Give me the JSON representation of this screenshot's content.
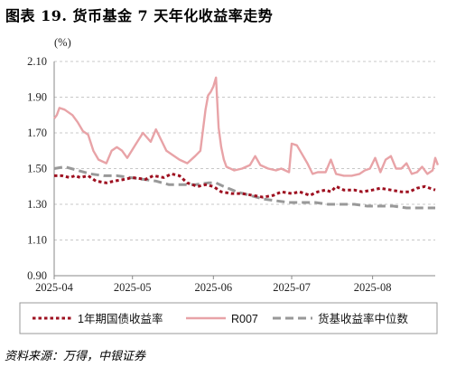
{
  "title": "图表 19. 货币基金 7 天年化收益率走势",
  "source": "资料来源：万得，中银证券",
  "chart_data": {
    "type": "line",
    "unit_label": "(%)",
    "ylim": [
      0.9,
      2.1
    ],
    "yticks": [
      "2.10",
      "1.90",
      "1.70",
      "1.50",
      "1.30",
      "1.10",
      "0.90"
    ],
    "xlim": [
      "2025-04-01",
      "2025-08-25"
    ],
    "xticks": [
      {
        "date": "2025-04-01",
        "label": "2025-04"
      },
      {
        "date": "2025-05-01",
        "label": "2025-05"
      },
      {
        "date": "2025-06-01",
        "label": "2025-06"
      },
      {
        "date": "2025-07-01",
        "label": "2025-07"
      },
      {
        "date": "2025-08-01",
        "label": "2025-08"
      }
    ],
    "grid": "horizontal dashed",
    "legend_position": "bottom",
    "series": [
      {
        "name": "1年期国债收益率",
        "color": "#9e1020",
        "style": "dotted-thick",
        "points": [
          [
            "2025-04-01",
            1.46
          ],
          [
            "2025-04-04",
            1.46
          ],
          [
            "2025-04-07",
            1.45
          ],
          [
            "2025-04-09",
            1.46
          ],
          [
            "2025-04-11",
            1.45
          ],
          [
            "2025-04-14",
            1.46
          ],
          [
            "2025-04-17",
            1.43
          ],
          [
            "2025-04-21",
            1.42
          ],
          [
            "2025-04-24",
            1.43
          ],
          [
            "2025-04-28",
            1.44
          ],
          [
            "2025-05-01",
            1.45
          ],
          [
            "2025-05-06",
            1.44
          ],
          [
            "2025-05-09",
            1.46
          ],
          [
            "2025-05-13",
            1.45
          ],
          [
            "2025-05-16",
            1.47
          ],
          [
            "2025-05-19",
            1.46
          ],
          [
            "2025-05-22",
            1.42
          ],
          [
            "2025-05-26",
            1.4
          ],
          [
            "2025-05-29",
            1.41
          ],
          [
            "2025-06-01",
            1.4
          ],
          [
            "2025-06-04",
            1.37
          ],
          [
            "2025-06-08",
            1.36
          ],
          [
            "2025-06-12",
            1.36
          ],
          [
            "2025-06-16",
            1.35
          ],
          [
            "2025-06-20",
            1.34
          ],
          [
            "2025-06-24",
            1.35
          ],
          [
            "2025-06-27",
            1.37
          ],
          [
            "2025-07-01",
            1.36
          ],
          [
            "2025-07-04",
            1.37
          ],
          [
            "2025-07-08",
            1.35
          ],
          [
            "2025-07-11",
            1.37
          ],
          [
            "2025-07-14",
            1.38
          ],
          [
            "2025-07-16",
            1.37
          ],
          [
            "2025-07-18",
            1.4
          ],
          [
            "2025-07-21",
            1.38
          ],
          [
            "2025-07-25",
            1.38
          ],
          [
            "2025-07-28",
            1.37
          ],
          [
            "2025-08-01",
            1.38
          ],
          [
            "2025-08-04",
            1.39
          ],
          [
            "2025-08-08",
            1.38
          ],
          [
            "2025-08-12",
            1.37
          ],
          [
            "2025-08-15",
            1.37
          ],
          [
            "2025-08-18",
            1.39
          ],
          [
            "2025-08-21",
            1.4
          ],
          [
            "2025-08-25",
            1.38
          ]
        ]
      },
      {
        "name": "R007",
        "color": "#e8a3a7",
        "style": "solid",
        "points": [
          [
            "2025-04-01",
            1.78
          ],
          [
            "2025-04-02",
            1.8
          ],
          [
            "2025-04-03",
            1.84
          ],
          [
            "2025-04-05",
            1.83
          ],
          [
            "2025-04-08",
            1.8
          ],
          [
            "2025-04-10",
            1.76
          ],
          [
            "2025-04-12",
            1.71
          ],
          [
            "2025-04-14",
            1.69
          ],
          [
            "2025-04-16",
            1.6
          ],
          [
            "2025-04-18",
            1.55
          ],
          [
            "2025-04-21",
            1.53
          ],
          [
            "2025-04-23",
            1.6
          ],
          [
            "2025-04-25",
            1.62
          ],
          [
            "2025-04-27",
            1.6
          ],
          [
            "2025-04-29",
            1.56
          ],
          [
            "2025-05-02",
            1.63
          ],
          [
            "2025-05-05",
            1.7
          ],
          [
            "2025-05-08",
            1.65
          ],
          [
            "2025-05-10",
            1.72
          ],
          [
            "2025-05-12",
            1.66
          ],
          [
            "2025-05-14",
            1.6
          ],
          [
            "2025-05-16",
            1.58
          ],
          [
            "2025-05-19",
            1.55
          ],
          [
            "2025-05-22",
            1.53
          ],
          [
            "2025-05-25",
            1.57
          ],
          [
            "2025-05-27",
            1.6
          ],
          [
            "2025-05-29",
            1.83
          ],
          [
            "2025-05-30",
            1.91
          ],
          [
            "2025-05-31",
            1.93
          ],
          [
            "2025-06-01",
            1.96
          ],
          [
            "2025-06-02",
            2.01
          ],
          [
            "2025-06-03",
            1.73
          ],
          [
            "2025-06-04",
            1.62
          ],
          [
            "2025-06-05",
            1.55
          ],
          [
            "2025-06-06",
            1.51
          ],
          [
            "2025-06-09",
            1.49
          ],
          [
            "2025-06-12",
            1.5
          ],
          [
            "2025-06-15",
            1.52
          ],
          [
            "2025-06-17",
            1.57
          ],
          [
            "2025-06-19",
            1.52
          ],
          [
            "2025-06-22",
            1.5
          ],
          [
            "2025-06-25",
            1.49
          ],
          [
            "2025-06-27",
            1.5
          ],
          [
            "2025-06-30",
            1.48
          ],
          [
            "2025-07-01",
            1.64
          ],
          [
            "2025-07-03",
            1.63
          ],
          [
            "2025-07-05",
            1.58
          ],
          [
            "2025-07-07",
            1.53
          ],
          [
            "2025-07-09",
            1.47
          ],
          [
            "2025-07-11",
            1.48
          ],
          [
            "2025-07-14",
            1.48
          ],
          [
            "2025-07-16",
            1.55
          ],
          [
            "2025-07-18",
            1.47
          ],
          [
            "2025-07-21",
            1.46
          ],
          [
            "2025-07-24",
            1.46
          ],
          [
            "2025-07-27",
            1.47
          ],
          [
            "2025-07-29",
            1.49
          ],
          [
            "2025-07-31",
            1.5
          ],
          [
            "2025-08-02",
            1.56
          ],
          [
            "2025-08-04",
            1.48
          ],
          [
            "2025-08-06",
            1.55
          ],
          [
            "2025-08-08",
            1.57
          ],
          [
            "2025-08-10",
            1.5
          ],
          [
            "2025-08-12",
            1.5
          ],
          [
            "2025-08-14",
            1.53
          ],
          [
            "2025-08-16",
            1.47
          ],
          [
            "2025-08-18",
            1.48
          ],
          [
            "2025-08-20",
            1.51
          ],
          [
            "2025-08-22",
            1.47
          ],
          [
            "2025-08-24",
            1.49
          ],
          [
            "2025-08-25",
            1.56
          ],
          [
            "2025-08-26",
            1.52
          ]
        ]
      },
      {
        "name": "货基收益率中位数",
        "color": "#999999",
        "style": "dashed",
        "points": [
          [
            "2025-04-01",
            1.5
          ],
          [
            "2025-04-05",
            1.51
          ],
          [
            "2025-04-10",
            1.49
          ],
          [
            "2025-04-15",
            1.47
          ],
          [
            "2025-04-20",
            1.46
          ],
          [
            "2025-04-25",
            1.46
          ],
          [
            "2025-04-30",
            1.45
          ],
          [
            "2025-05-05",
            1.44
          ],
          [
            "2025-05-10",
            1.43
          ],
          [
            "2025-05-15",
            1.41
          ],
          [
            "2025-05-20",
            1.41
          ],
          [
            "2025-05-25",
            1.41
          ],
          [
            "2025-05-30",
            1.42
          ],
          [
            "2025-06-02",
            1.42
          ],
          [
            "2025-06-05",
            1.4
          ],
          [
            "2025-06-10",
            1.37
          ],
          [
            "2025-06-15",
            1.35
          ],
          [
            "2025-06-20",
            1.33
          ],
          [
            "2025-06-25",
            1.32
          ],
          [
            "2025-06-30",
            1.31
          ],
          [
            "2025-07-05",
            1.31
          ],
          [
            "2025-07-10",
            1.31
          ],
          [
            "2025-07-15",
            1.3
          ],
          [
            "2025-07-20",
            1.3
          ],
          [
            "2025-07-25",
            1.3
          ],
          [
            "2025-07-30",
            1.29
          ],
          [
            "2025-08-04",
            1.29
          ],
          [
            "2025-08-09",
            1.29
          ],
          [
            "2025-08-14",
            1.28
          ],
          [
            "2025-08-19",
            1.28
          ],
          [
            "2025-08-25",
            1.28
          ]
        ]
      }
    ]
  }
}
